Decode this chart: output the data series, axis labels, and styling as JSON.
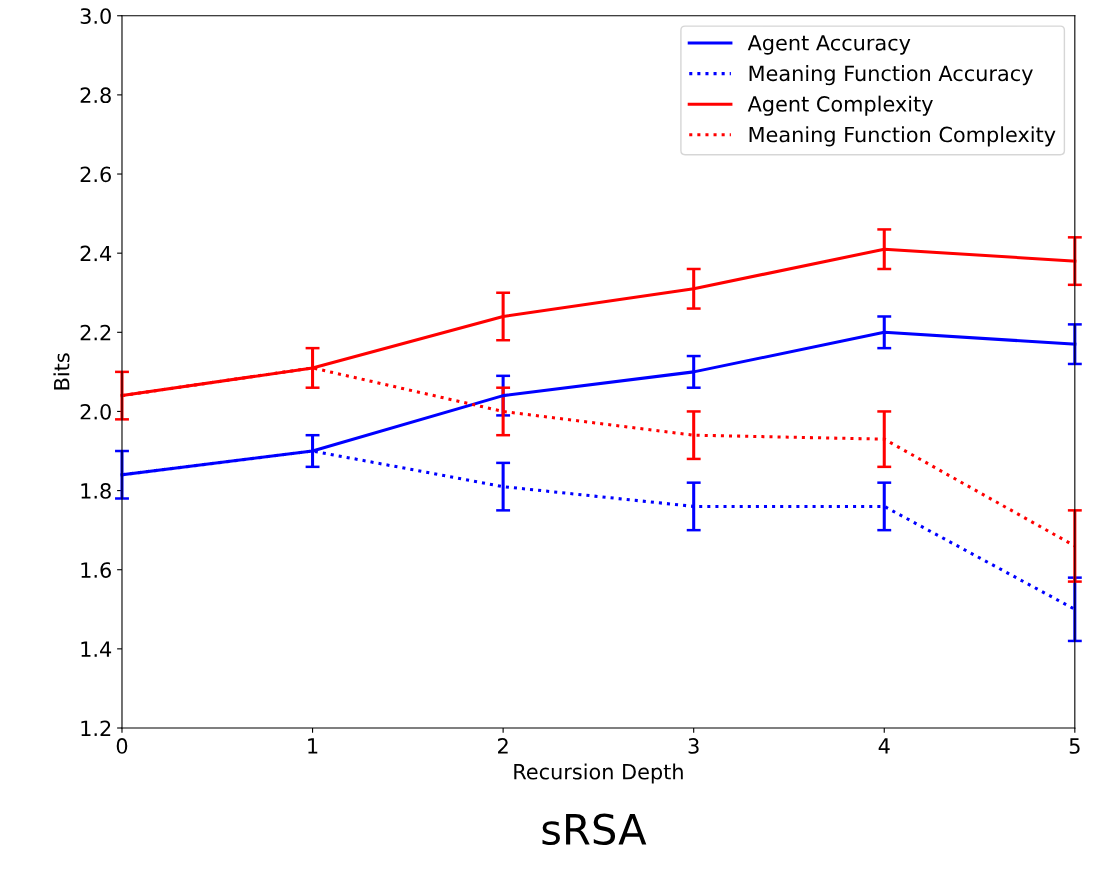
{
  "chart_data": {
    "type": "line",
    "title": "sRSA",
    "xlabel": "Recursion Depth",
    "ylabel": "Bits",
    "x": [
      0,
      1,
      2,
      3,
      4,
      5
    ],
    "xlim": [
      0,
      5
    ],
    "xticks": [
      0,
      1,
      2,
      3,
      4,
      5
    ],
    "ylim": [
      1.2,
      3.0
    ],
    "yticks": [
      {
        "value": 1.2,
        "label": "1.2"
      },
      {
        "value": 1.4,
        "label": "1.4"
      },
      {
        "value": 1.6,
        "label": "1.6"
      },
      {
        "value": 1.8,
        "label": "1.8"
      },
      {
        "value": 2.0,
        "label": "2.0"
      },
      {
        "value": 2.2,
        "label": "2.2"
      },
      {
        "value": 2.4,
        "label": "2.4"
      },
      {
        "value": 2.6,
        "label": "2.6"
      },
      {
        "value": 2.8,
        "label": "2.8"
      },
      {
        "value": 3.0,
        "label": "3.0"
      }
    ],
    "legend": "top right",
    "grid": false,
    "marker": "none",
    "series": [
      {
        "name": "Agent Accuracy",
        "color": "#0000ff",
        "line_style": "solid",
        "values": [
          1.84,
          1.9,
          2.04,
          2.1,
          2.2,
          2.17
        ],
        "errors": [
          0.06,
          0.04,
          0.05,
          0.04,
          0.04,
          0.05
        ]
      },
      {
        "name": "Meaning Function Accuracy",
        "color": "#0000ff",
        "line_style": "dotted",
        "values": [
          1.84,
          1.9,
          1.81,
          1.76,
          1.76,
          1.5
        ],
        "errors": [
          null,
          null,
          0.06,
          0.06,
          0.06,
          0.08
        ]
      },
      {
        "name": "Agent Complexity",
        "color": "#ff0000",
        "line_style": "solid",
        "values": [
          2.04,
          2.11,
          2.24,
          2.31,
          2.41,
          2.38
        ],
        "errors": [
          0.06,
          0.05,
          0.06,
          0.05,
          0.05,
          0.06
        ]
      },
      {
        "name": "Meaning Function Complexity",
        "color": "#ff0000",
        "line_style": "dotted",
        "values": [
          2.04,
          2.11,
          2.0,
          1.94,
          1.93,
          1.66
        ],
        "errors": [
          null,
          null,
          0.06,
          0.06,
          0.07,
          0.09
        ]
      }
    ]
  }
}
